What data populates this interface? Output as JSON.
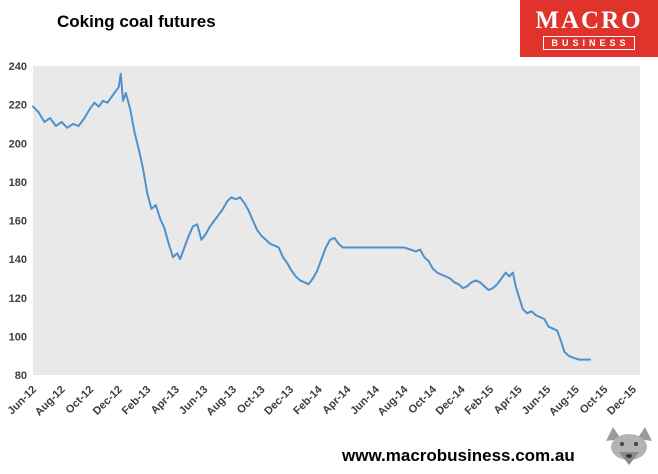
{
  "header": {
    "title": "Coking coal futures"
  },
  "logo": {
    "line1": "MACRO",
    "line2": "BUSINESS",
    "bg_color": "#e0332c"
  },
  "footer": {
    "url": "www.macrobusiness.com.au"
  },
  "chart_data": {
    "type": "line",
    "title": "Coking coal futures",
    "plot_bg": "#e9e9e9",
    "line_color": "#4f91cd",
    "grid": false,
    "legend": "none",
    "ylim": [
      80,
      240
    ],
    "y_ticks": [
      80,
      100,
      120,
      140,
      160,
      180,
      200,
      220,
      240
    ],
    "xlim": [
      0,
      42.5
    ],
    "x_tick_labels": [
      "Jun-12",
      "Aug-12",
      "Oct-12",
      "Dec-12",
      "Feb-13",
      "Apr-13",
      "Jun-13",
      "Aug-13",
      "Oct-13",
      "Dec-13",
      "Feb-14",
      "Apr-14",
      "Jun-14",
      "Aug-14",
      "Oct-14",
      "Dec-14",
      "Feb-15",
      "Apr-15",
      "Jun-15",
      "Aug-15",
      "Oct-15",
      "Dec-15"
    ],
    "x_tick_months": [
      0,
      2,
      4,
      6,
      8,
      10,
      12,
      14,
      16,
      18,
      20,
      22,
      24,
      26,
      28,
      30,
      32,
      34,
      36,
      38,
      40,
      42
    ],
    "series": [
      {
        "name": "Coking coal futures price",
        "x": [
          0,
          0.4,
          0.8,
          1.2,
          1.6,
          2,
          2.4,
          2.8,
          3.2,
          3.6,
          4,
          4.3,
          4.6,
          4.9,
          5.2,
          5.5,
          5.8,
          6,
          6.15,
          6.3,
          6.5,
          6.8,
          7.1,
          7.4,
          7.7,
          8,
          8.3,
          8.6,
          8.9,
          9.2,
          9.5,
          9.8,
          10.1,
          10.3,
          10.6,
          10.9,
          11.2,
          11.5,
          11.8,
          12.1,
          12.4,
          12.7,
          13,
          13.3,
          13.6,
          13.9,
          14.2,
          14.5,
          14.8,
          15.1,
          15.4,
          15.7,
          16,
          16.3,
          16.6,
          16.9,
          17.2,
          17.5,
          17.8,
          18.1,
          18.4,
          18.7,
          19,
          19.3,
          19.6,
          19.9,
          20.2,
          20.5,
          20.8,
          21.1,
          21.4,
          21.7,
          22,
          23,
          24,
          25,
          26,
          26.4,
          26.8,
          27.1,
          27.4,
          27.7,
          28,
          28.3,
          28.6,
          28.9,
          29.2,
          29.5,
          29.8,
          30.1,
          30.4,
          30.7,
          31,
          31.3,
          31.6,
          31.9,
          32.2,
          32.5,
          32.8,
          33.1,
          33.35,
          33.6,
          33.8,
          34,
          34.3,
          34.6,
          34.9,
          35.2,
          35.5,
          35.8,
          36.1,
          36.4,
          36.7,
          37,
          37.2,
          37.5,
          37.8,
          38.2,
          38.6,
          39
        ],
        "values": [
          219,
          216,
          211,
          213,
          209,
          211,
          208,
          210,
          209,
          213,
          218,
          221,
          219,
          222,
          221,
          224,
          227,
          229,
          236,
          222,
          226,
          218,
          206,
          197,
          187,
          174,
          166,
          168,
          161,
          156,
          148,
          141,
          143,
          140,
          146,
          152,
          157,
          158,
          150,
          153,
          157,
          160,
          163,
          166,
          170,
          172,
          171,
          172,
          169,
          165,
          160,
          155,
          152,
          150,
          148,
          147,
          146,
          141,
          138,
          134,
          131,
          129,
          128,
          127,
          130,
          134,
          140,
          146,
          150,
          151,
          148,
          146,
          146,
          146,
          146,
          146,
          146,
          145,
          144,
          145,
          141,
          139,
          135,
          133,
          132,
          131,
          130,
          128,
          127,
          125,
          126,
          128,
          129,
          128,
          126,
          124,
          125,
          127,
          130,
          133,
          131,
          133,
          126,
          121,
          114,
          112,
          113,
          111,
          110,
          109,
          105,
          104,
          103,
          97,
          92,
          90,
          89,
          88,
          88,
          88
        ]
      }
    ]
  }
}
